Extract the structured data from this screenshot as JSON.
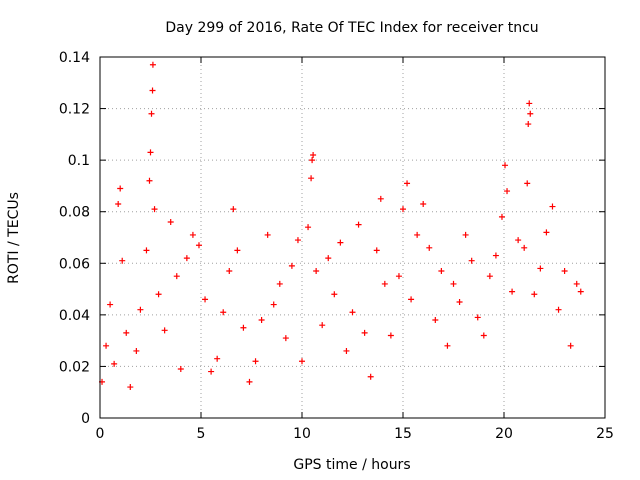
{
  "chart_data": {
    "type": "scatter",
    "title": "Day 299 of 2016, Rate Of TEC Index for receiver tncu",
    "xlabel": "GPS time / hours",
    "ylabel": "ROTI / TECUs",
    "xlim": [
      0,
      25
    ],
    "ylim": [
      0,
      0.14
    ],
    "x_ticks": [
      0,
      5,
      10,
      15,
      20,
      25
    ],
    "x_tick_labels": [
      "0",
      "5",
      "10",
      "15",
      "20",
      "25"
    ],
    "y_ticks": [
      0,
      0.02,
      0.04,
      0.06,
      0.08,
      0.1,
      0.12,
      0.14
    ],
    "y_tick_labels": [
      "0",
      "0.02",
      "0.04",
      "0.06",
      "0.08",
      "0.1",
      "0.12",
      "0.14"
    ],
    "grid": true,
    "marker": "+",
    "series": [
      {
        "name": "ROTI",
        "color": "#ff0000",
        "points": [
          [
            0.1,
            0.014
          ],
          [
            0.3,
            0.028
          ],
          [
            0.5,
            0.044
          ],
          [
            0.7,
            0.021
          ],
          [
            0.9,
            0.083
          ],
          [
            1.0,
            0.089
          ],
          [
            1.1,
            0.061
          ],
          [
            1.3,
            0.033
          ],
          [
            1.5,
            0.012
          ],
          [
            1.8,
            0.026
          ],
          [
            2.0,
            0.042
          ],
          [
            2.3,
            0.065
          ],
          [
            2.45,
            0.092
          ],
          [
            2.5,
            0.103
          ],
          [
            2.55,
            0.118
          ],
          [
            2.6,
            0.127
          ],
          [
            2.62,
            0.137
          ],
          [
            2.7,
            0.081
          ],
          [
            2.9,
            0.048
          ],
          [
            3.2,
            0.034
          ],
          [
            3.5,
            0.076
          ],
          [
            3.8,
            0.055
          ],
          [
            4.0,
            0.019
          ],
          [
            4.3,
            0.062
          ],
          [
            4.6,
            0.071
          ],
          [
            4.9,
            0.067
          ],
          [
            5.2,
            0.046
          ],
          [
            5.5,
            0.018
          ],
          [
            5.8,
            0.023
          ],
          [
            6.1,
            0.041
          ],
          [
            6.4,
            0.057
          ],
          [
            6.6,
            0.081
          ],
          [
            6.8,
            0.065
          ],
          [
            7.1,
            0.035
          ],
          [
            7.4,
            0.014
          ],
          [
            7.7,
            0.022
          ],
          [
            8.0,
            0.038
          ],
          [
            8.3,
            0.071
          ],
          [
            8.6,
            0.044
          ],
          [
            8.9,
            0.052
          ],
          [
            9.2,
            0.031
          ],
          [
            9.5,
            0.059
          ],
          [
            9.8,
            0.069
          ],
          [
            10.0,
            0.022
          ],
          [
            10.3,
            0.074
          ],
          [
            10.45,
            0.093
          ],
          [
            10.5,
            0.1
          ],
          [
            10.55,
            0.102
          ],
          [
            10.7,
            0.057
          ],
          [
            11.0,
            0.036
          ],
          [
            11.3,
            0.062
          ],
          [
            11.6,
            0.048
          ],
          [
            11.9,
            0.068
          ],
          [
            12.2,
            0.026
          ],
          [
            12.5,
            0.041
          ],
          [
            12.8,
            0.075
          ],
          [
            13.1,
            0.033
          ],
          [
            13.4,
            0.016
          ],
          [
            13.7,
            0.065
          ],
          [
            13.9,
            0.085
          ],
          [
            14.1,
            0.052
          ],
          [
            14.4,
            0.032
          ],
          [
            14.8,
            0.055
          ],
          [
            15.0,
            0.081
          ],
          [
            15.2,
            0.091
          ],
          [
            15.4,
            0.046
          ],
          [
            15.7,
            0.071
          ],
          [
            16.0,
            0.083
          ],
          [
            16.3,
            0.066
          ],
          [
            16.6,
            0.038
          ],
          [
            16.9,
            0.057
          ],
          [
            17.2,
            0.028
          ],
          [
            17.5,
            0.052
          ],
          [
            17.8,
            0.045
          ],
          [
            18.1,
            0.071
          ],
          [
            18.4,
            0.061
          ],
          [
            18.7,
            0.039
          ],
          [
            19.0,
            0.032
          ],
          [
            19.3,
            0.055
          ],
          [
            19.6,
            0.063
          ],
          [
            19.9,
            0.078
          ],
          [
            20.05,
            0.098
          ],
          [
            20.15,
            0.088
          ],
          [
            20.4,
            0.049
          ],
          [
            20.7,
            0.069
          ],
          [
            21.0,
            0.066
          ],
          [
            21.15,
            0.091
          ],
          [
            21.2,
            0.114
          ],
          [
            21.25,
            0.122
          ],
          [
            21.3,
            0.118
          ],
          [
            21.5,
            0.048
          ],
          [
            21.8,
            0.058
          ],
          [
            22.1,
            0.072
          ],
          [
            22.4,
            0.082
          ],
          [
            22.7,
            0.042
          ],
          [
            23.0,
            0.057
          ],
          [
            23.3,
            0.028
          ],
          [
            23.6,
            0.052
          ],
          [
            23.8,
            0.049
          ]
        ]
      }
    ]
  }
}
